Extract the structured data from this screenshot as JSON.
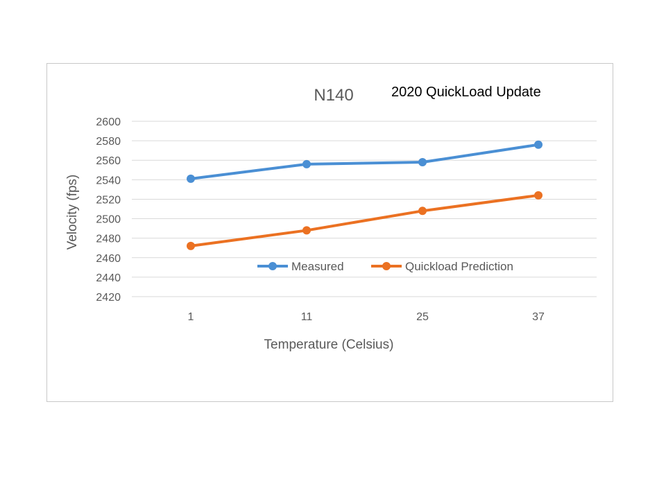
{
  "overlay_text": "2020 QuickLoad Update",
  "chart_data": {
    "type": "line",
    "title": "N140",
    "xlabel": "Temperature (Celsius)",
    "ylabel": "Velocity (fps)",
    "categories": [
      "1",
      "11",
      "25",
      "37"
    ],
    "ylim": [
      2420,
      2600
    ],
    "yticks": [
      2420,
      2440,
      2460,
      2480,
      2500,
      2520,
      2540,
      2560,
      2580,
      2600
    ],
    "grid": true,
    "legend_position": "inside-bottom",
    "series": [
      {
        "name": "Measured",
        "color": "#4a8fd4",
        "values": [
          2541,
          2556,
          2558,
          2576
        ]
      },
      {
        "name": "Quickload Prediction",
        "color": "#eb7122",
        "values": [
          2472,
          2488,
          2508,
          2524
        ]
      }
    ]
  }
}
